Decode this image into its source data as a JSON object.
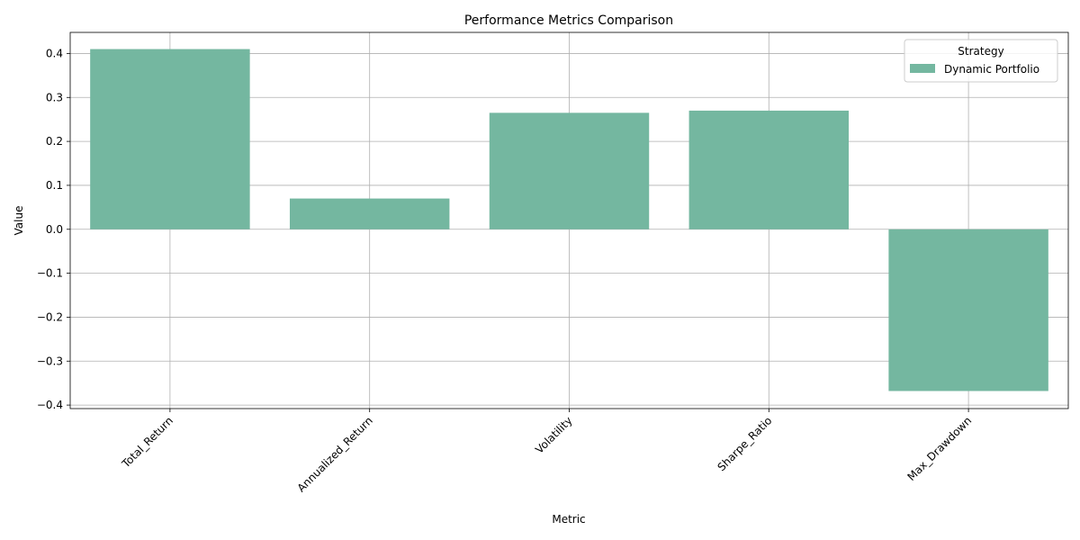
{
  "chart_data": {
    "type": "bar",
    "title": "Performance Metrics Comparison",
    "xlabel": "Metric",
    "ylabel": "Value",
    "categories": [
      "Total_Return",
      "Annualized_Return",
      "Volatility",
      "Sharpe_Ratio",
      "Max_Drawdown"
    ],
    "series": [
      {
        "name": "Dynamic Portfolio",
        "values": [
          0.41,
          0.07,
          0.265,
          0.27,
          -0.368
        ],
        "color": "#74b7a0"
      }
    ],
    "ylim": [
      -0.408,
      0.448
    ],
    "yticks": [
      -0.4,
      -0.3,
      -0.2,
      -0.1,
      0.0,
      0.1,
      0.2,
      0.3,
      0.4
    ],
    "ytick_labels": [
      "−0.4",
      "−0.3",
      "−0.2",
      "−0.1",
      "0.0",
      "0.1",
      "0.2",
      "0.3",
      "0.4"
    ],
    "grid": true,
    "legend": {
      "title": "Strategy",
      "position": "top-right"
    }
  }
}
